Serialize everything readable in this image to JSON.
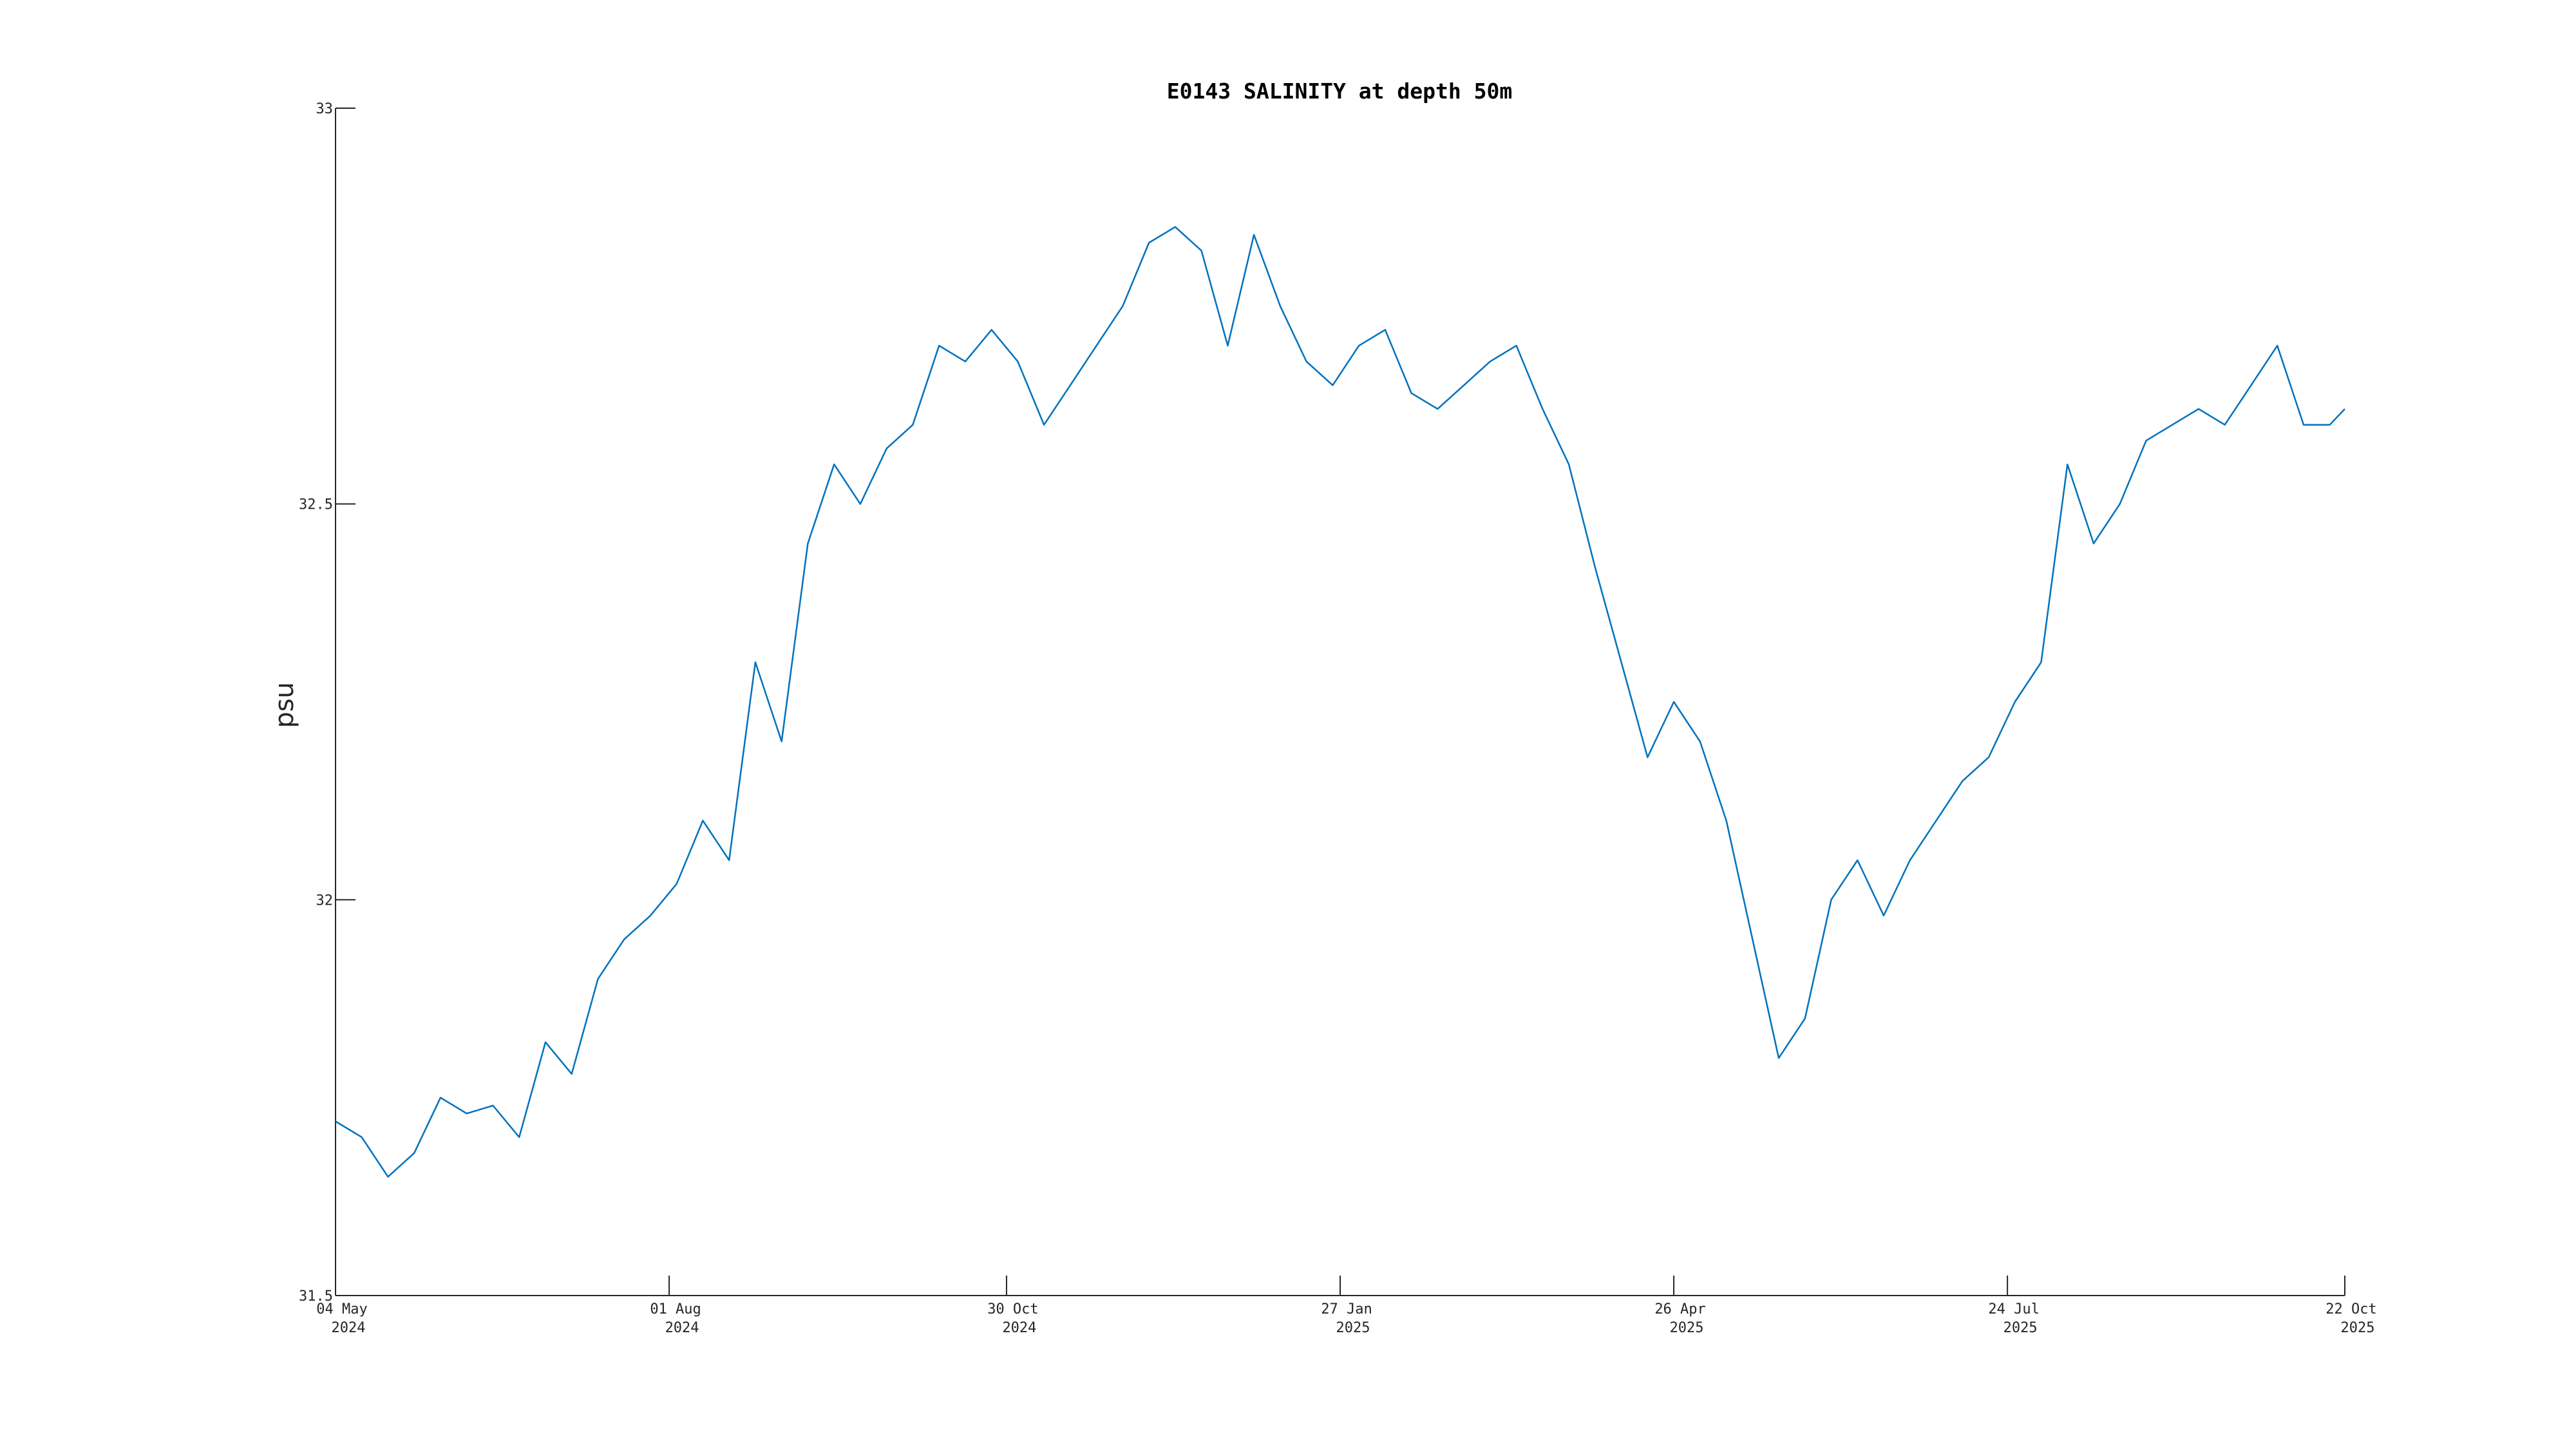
{
  "chart_data": {
    "type": "line",
    "title": "E0143 SALINITY at depth 50m",
    "xlabel": "",
    "ylabel": "psu",
    "ylim": [
      31.5,
      33
    ],
    "xlim": [
      "2024-05-04",
      "2025-10-22"
    ],
    "grid": false,
    "legend": "none",
    "line_color": "#0072BD",
    "axis_color": "#262626",
    "yticks": [
      {
        "value": 31.5,
        "label": "31.5"
      },
      {
        "value": 32,
        "label": "32"
      },
      {
        "value": 32.5,
        "label": "32.5"
      },
      {
        "value": 33,
        "label": "33"
      }
    ],
    "xticks": [
      {
        "value": "2024-05-04",
        "line1": "04 May",
        "line2": "2024"
      },
      {
        "value": "2024-08-01",
        "line1": "01 Aug",
        "line2": "2024"
      },
      {
        "value": "2024-10-30",
        "line1": "30 Oct",
        "line2": "2024"
      },
      {
        "value": "2025-01-27",
        "line1": "27 Jan",
        "line2": "2025"
      },
      {
        "value": "2025-04-26",
        "line1": "26 Apr",
        "line2": "2025"
      },
      {
        "value": "2025-07-24",
        "line1": "24 Jul",
        "line2": "2025"
      },
      {
        "value": "2025-10-22",
        "line1": "22 Oct",
        "line2": "2025"
      }
    ],
    "series": [
      {
        "x": [
          "2024-05-04",
          "2024-05-11",
          "2024-05-18",
          "2024-05-25",
          "2024-06-01",
          "2024-06-08",
          "2024-06-15",
          "2024-06-22",
          "2024-06-29",
          "2024-07-06",
          "2024-07-13",
          "2024-07-20",
          "2024-07-27",
          "2024-08-03",
          "2024-08-10",
          "2024-08-17",
          "2024-08-24",
          "2024-08-31",
          "2024-09-07",
          "2024-09-14",
          "2024-09-21",
          "2024-09-28",
          "2024-10-05",
          "2024-10-12",
          "2024-10-19",
          "2024-10-26",
          "2024-11-02",
          "2024-11-09",
          "2024-11-16",
          "2024-11-23",
          "2024-11-30",
          "2024-12-07",
          "2024-12-14",
          "2024-12-21",
          "2024-12-28",
          "2025-01-04",
          "2025-01-11",
          "2025-01-18",
          "2025-01-25",
          "2025-02-01",
          "2025-02-08",
          "2025-02-15",
          "2025-02-22",
          "2025-03-01",
          "2025-03-08",
          "2025-03-15",
          "2025-03-22",
          "2025-03-29",
          "2025-04-05",
          "2025-04-12",
          "2025-04-19",
          "2025-04-26",
          "2025-05-03",
          "2025-05-10",
          "2025-05-17",
          "2025-05-24",
          "2025-05-31",
          "2025-06-07",
          "2025-06-14",
          "2025-06-21",
          "2025-06-28",
          "2025-07-05",
          "2025-07-12",
          "2025-07-19",
          "2025-07-26",
          "2025-08-02",
          "2025-08-09",
          "2025-08-16",
          "2025-08-23",
          "2025-08-30",
          "2025-09-06",
          "2025-09-13",
          "2025-09-20",
          "2025-09-27",
          "2025-10-04",
          "2025-10-11",
          "2025-10-18",
          "2025-10-22"
        ],
        "y": [
          31.72,
          31.7,
          31.65,
          31.68,
          31.75,
          31.73,
          31.74,
          31.7,
          31.82,
          31.78,
          31.9,
          31.95,
          31.98,
          32.02,
          32.1,
          32.05,
          32.3,
          32.2,
          32.45,
          32.55,
          32.5,
          32.57,
          32.6,
          32.7,
          32.68,
          32.72,
          32.68,
          32.6,
          32.65,
          32.7,
          32.75,
          32.83,
          32.85,
          32.82,
          32.7,
          32.84,
          32.75,
          32.68,
          32.65,
          32.7,
          32.72,
          32.64,
          32.62,
          32.65,
          32.68,
          32.7,
          32.62,
          32.55,
          32.42,
          32.3,
          32.18,
          32.25,
          32.2,
          32.1,
          31.95,
          31.8,
          31.85,
          32.0,
          32.05,
          31.98,
          32.05,
          32.1,
          32.15,
          32.18,
          32.25,
          32.3,
          32.55,
          32.45,
          32.5,
          32.58,
          32.6,
          32.62,
          32.6,
          32.65,
          32.7,
          32.6,
          32.6,
          32.62
        ]
      }
    ]
  }
}
